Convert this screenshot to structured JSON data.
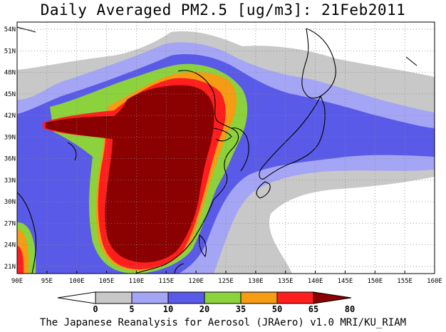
{
  "title": "Daily Averaged PM2.5 [ug/m3]: 21Feb2011",
  "footer": "The Japanese Reanalysis for Aerosol (JRAero) v1.0 MRI/KU_RIAM",
  "map": {
    "lat_labels": [
      "54N",
      "51N",
      "48N",
      "45N",
      "42N",
      "39N",
      "36N",
      "33N",
      "30N",
      "27N",
      "24N",
      "21N"
    ],
    "lon_labels": [
      "90E",
      "95E",
      "100E",
      "105E",
      "110E",
      "115E",
      "120E",
      "125E",
      "130E",
      "135E",
      "140E",
      "145E",
      "150E",
      "155E",
      "160E"
    ],
    "extent": {
      "lon": [
        90,
        160
      ],
      "lat": [
        20,
        55
      ]
    }
  },
  "colorbar": {
    "labels": [
      "0",
      "5",
      "10",
      "20",
      "35",
      "50",
      "65",
      "80"
    ],
    "colors": [
      "#ffffff",
      "#c8c8c8",
      "#a5a5f5",
      "#5a5ae8",
      "#8cd23c",
      "#f59b14",
      "#ff1e1e",
      "#8b0000"
    ]
  }
}
